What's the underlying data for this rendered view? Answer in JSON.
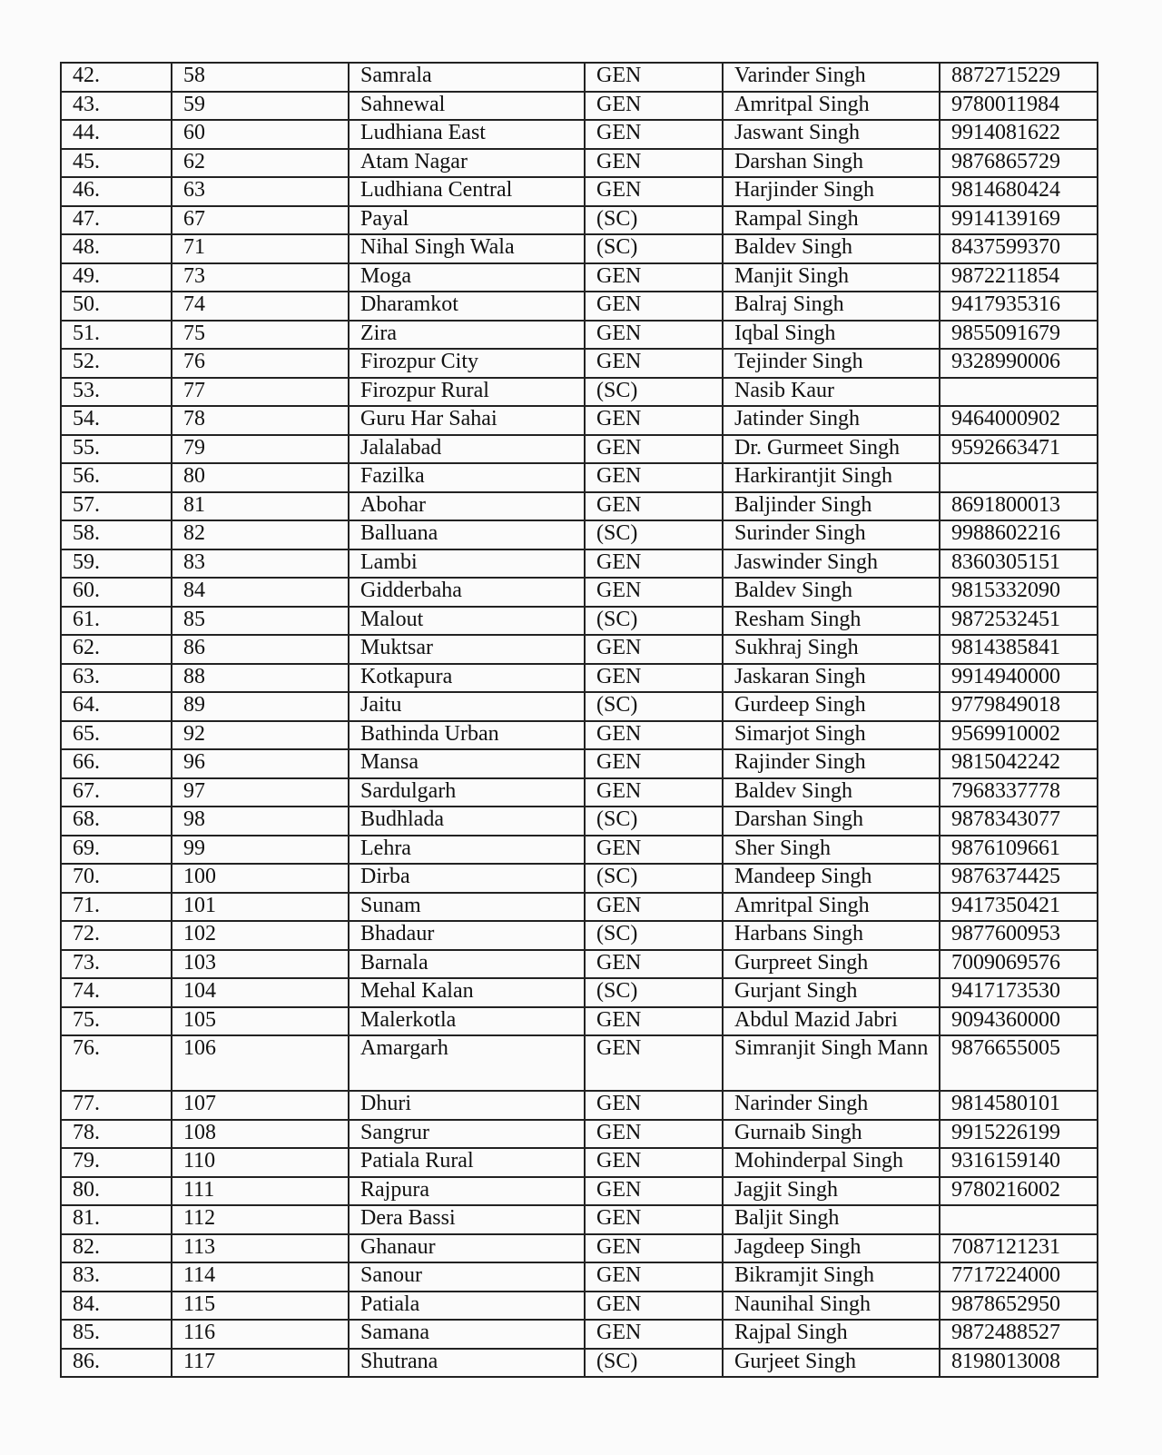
{
  "table": {
    "rows": [
      [
        "42.",
        "58",
        "Samrala",
        "GEN",
        "Varinder Singh",
        "8872715229"
      ],
      [
        "43.",
        "59",
        "Sahnewal",
        "GEN",
        "Amritpal Singh",
        "9780011984"
      ],
      [
        "44.",
        "60",
        "Ludhiana East",
        "GEN",
        "Jaswant Singh",
        "9914081622"
      ],
      [
        "45.",
        "62",
        "Atam Nagar",
        "GEN",
        "Darshan Singh",
        "9876865729"
      ],
      [
        "46.",
        "63",
        "Ludhiana Central",
        "GEN",
        "Harjinder Singh",
        "9814680424"
      ],
      [
        "47.",
        "67",
        "Payal",
        "(SC)",
        "Rampal Singh",
        "9914139169"
      ],
      [
        "48.",
        "71",
        "Nihal Singh Wala",
        "(SC)",
        "Baldev Singh",
        "8437599370"
      ],
      [
        "49.",
        "73",
        "Moga",
        "GEN",
        "Manjit Singh",
        "9872211854"
      ],
      [
        "50.",
        "74",
        "Dharamkot",
        "GEN",
        "Balraj Singh",
        "9417935316"
      ],
      [
        "51.",
        "75",
        "Zira",
        "GEN",
        "Iqbal Singh",
        "9855091679"
      ],
      [
        "52.",
        "76",
        "Firozpur City",
        "GEN",
        "Tejinder Singh",
        "9328990006"
      ],
      [
        "53.",
        "77",
        "Firozpur Rural",
        "(SC)",
        "Nasib Kaur",
        ""
      ],
      [
        "54.",
        "78",
        "Guru Har Sahai",
        "GEN",
        "Jatinder Singh",
        "9464000902"
      ],
      [
        "55.",
        "79",
        "Jalalabad",
        "GEN",
        "Dr. Gurmeet Singh",
        "9592663471"
      ],
      [
        "56.",
        "80",
        "Fazilka",
        "GEN",
        "Harkirantjit Singh",
        ""
      ],
      [
        "57.",
        "81",
        "Abohar",
        "GEN",
        "Baljinder Singh",
        "8691800013"
      ],
      [
        "58.",
        "82",
        "Balluana",
        "(SC)",
        "Surinder Singh",
        "9988602216"
      ],
      [
        "59.",
        "83",
        "Lambi",
        "GEN",
        "Jaswinder Singh",
        "8360305151"
      ],
      [
        "60.",
        "84",
        "Gidderbaha",
        "GEN",
        "Baldev Singh",
        "9815332090"
      ],
      [
        "61.",
        "85",
        "Malout",
        "(SC)",
        "Resham Singh",
        "9872532451"
      ],
      [
        "62.",
        "86",
        "Muktsar",
        "GEN",
        "Sukhraj Singh",
        "9814385841"
      ],
      [
        "63.",
        "88",
        "Kotkapura",
        "GEN",
        "Jaskaran Singh",
        "9914940000"
      ],
      [
        "64.",
        "89",
        "Jaitu",
        "(SC)",
        "Gurdeep Singh",
        "9779849018"
      ],
      [
        "65.",
        "92",
        "Bathinda Urban",
        "GEN",
        "Simarjot Singh",
        "9569910002"
      ],
      [
        "66.",
        "96",
        "Mansa",
        "GEN",
        "Rajinder Singh",
        "9815042242"
      ],
      [
        "67.",
        "97",
        "Sardulgarh",
        "GEN",
        "Baldev Singh",
        "7968337778"
      ],
      [
        "68.",
        "98",
        "Budhlada",
        "(SC)",
        "Darshan Singh",
        "9878343077"
      ],
      [
        "69.",
        "99",
        "Lehra",
        "GEN",
        "Sher Singh",
        "9876109661"
      ],
      [
        "70.",
        "100",
        "Dirba",
        "(SC)",
        "Mandeep Singh",
        "9876374425"
      ],
      [
        "71.",
        "101",
        "Sunam",
        "GEN",
        "Amritpal Singh",
        "9417350421"
      ],
      [
        "72.",
        "102",
        "Bhadaur",
        "(SC)",
        "Harbans Singh",
        "9877600953"
      ],
      [
        "73.",
        "103",
        "Barnala",
        "GEN",
        "Gurpreet Singh",
        "7009069576"
      ],
      [
        "74.",
        "104",
        "Mehal Kalan",
        "(SC)",
        "Gurjant Singh",
        "9417173530"
      ],
      [
        "75.",
        "105",
        "Malerkotla",
        "GEN",
        "Abdul Mazid Jabri",
        "9094360000"
      ],
      [
        "76.",
        "106",
        "Amargarh",
        "GEN",
        "Simranjit Singh Mann",
        "9876655005"
      ],
      [
        "77.",
        "107",
        "Dhuri",
        "GEN",
        "Narinder Singh",
        "9814580101"
      ],
      [
        "78.",
        "108",
        "Sangrur",
        "GEN",
        "Gurnaib Singh",
        "9915226199"
      ],
      [
        "79.",
        "110",
        "Patiala Rural",
        "GEN",
        "Mohinderpal Singh",
        "9316159140"
      ],
      [
        "80.",
        "111",
        "Rajpura",
        "GEN",
        "Jagjit Singh",
        "9780216002"
      ],
      [
        "81.",
        "112",
        "Dera Bassi",
        "GEN",
        "Baljit Singh",
        ""
      ],
      [
        "82.",
        "113",
        "Ghanaur",
        "GEN",
        "Jagdeep Singh",
        "7087121231"
      ],
      [
        "83.",
        "114",
        "Sanour",
        "GEN",
        "Bikramjit Singh",
        "7717224000"
      ],
      [
        "84.",
        "115",
        "Patiala",
        "GEN",
        "Naunihal Singh",
        "9878652950"
      ],
      [
        "85.",
        "116",
        "Samana",
        "GEN",
        "Rajpal Singh",
        "9872488527"
      ],
      [
        "86.",
        "117",
        "Shutrana",
        "(SC)",
        "Gurjeet Singh",
        "8198013008"
      ]
    ]
  }
}
